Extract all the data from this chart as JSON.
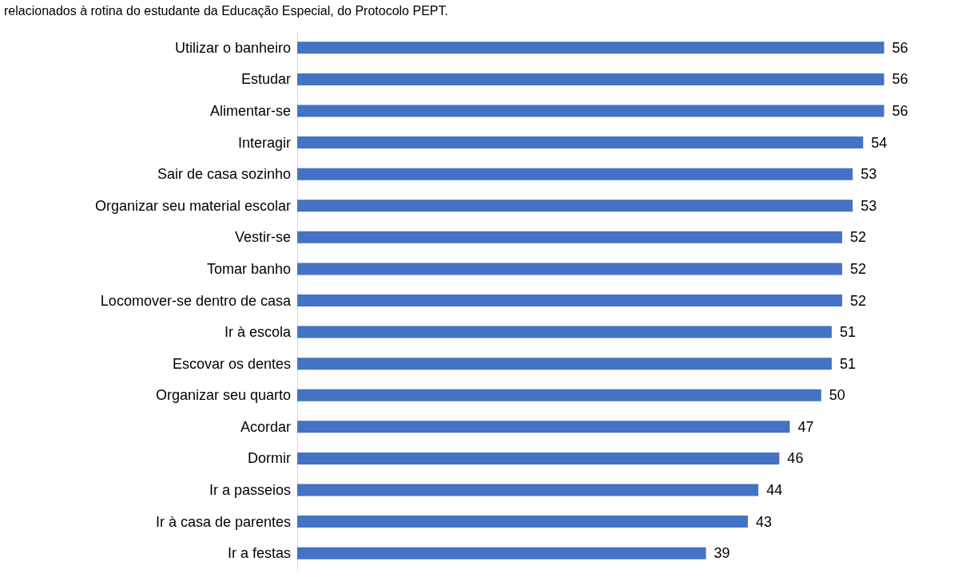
{
  "chart_data": {
    "type": "bar",
    "orientation": "horizontal",
    "title": "relacionados à rotina do estudante da Educação Especial, do Protocolo PEPT.",
    "categories": [
      "Utilizar o banheiro",
      "Estudar",
      "Alimentar-se",
      "Interagir",
      "Sair de casa sozinho",
      "Organizar seu material escolar",
      "Vestir-se",
      "Tomar banho",
      "Locomover-se dentro de casa",
      "Ir à escola",
      "Escovar os dentes",
      "Organizar seu quarto",
      "Acordar",
      "Dormir",
      "Ir a passeios",
      "Ir à casa de parentes",
      "Ir a festas"
    ],
    "values": [
      56,
      56,
      56,
      54,
      53,
      53,
      52,
      52,
      52,
      51,
      51,
      50,
      47,
      46,
      44,
      43,
      39
    ],
    "color": "#4472c4",
    "data_labels": true
  }
}
